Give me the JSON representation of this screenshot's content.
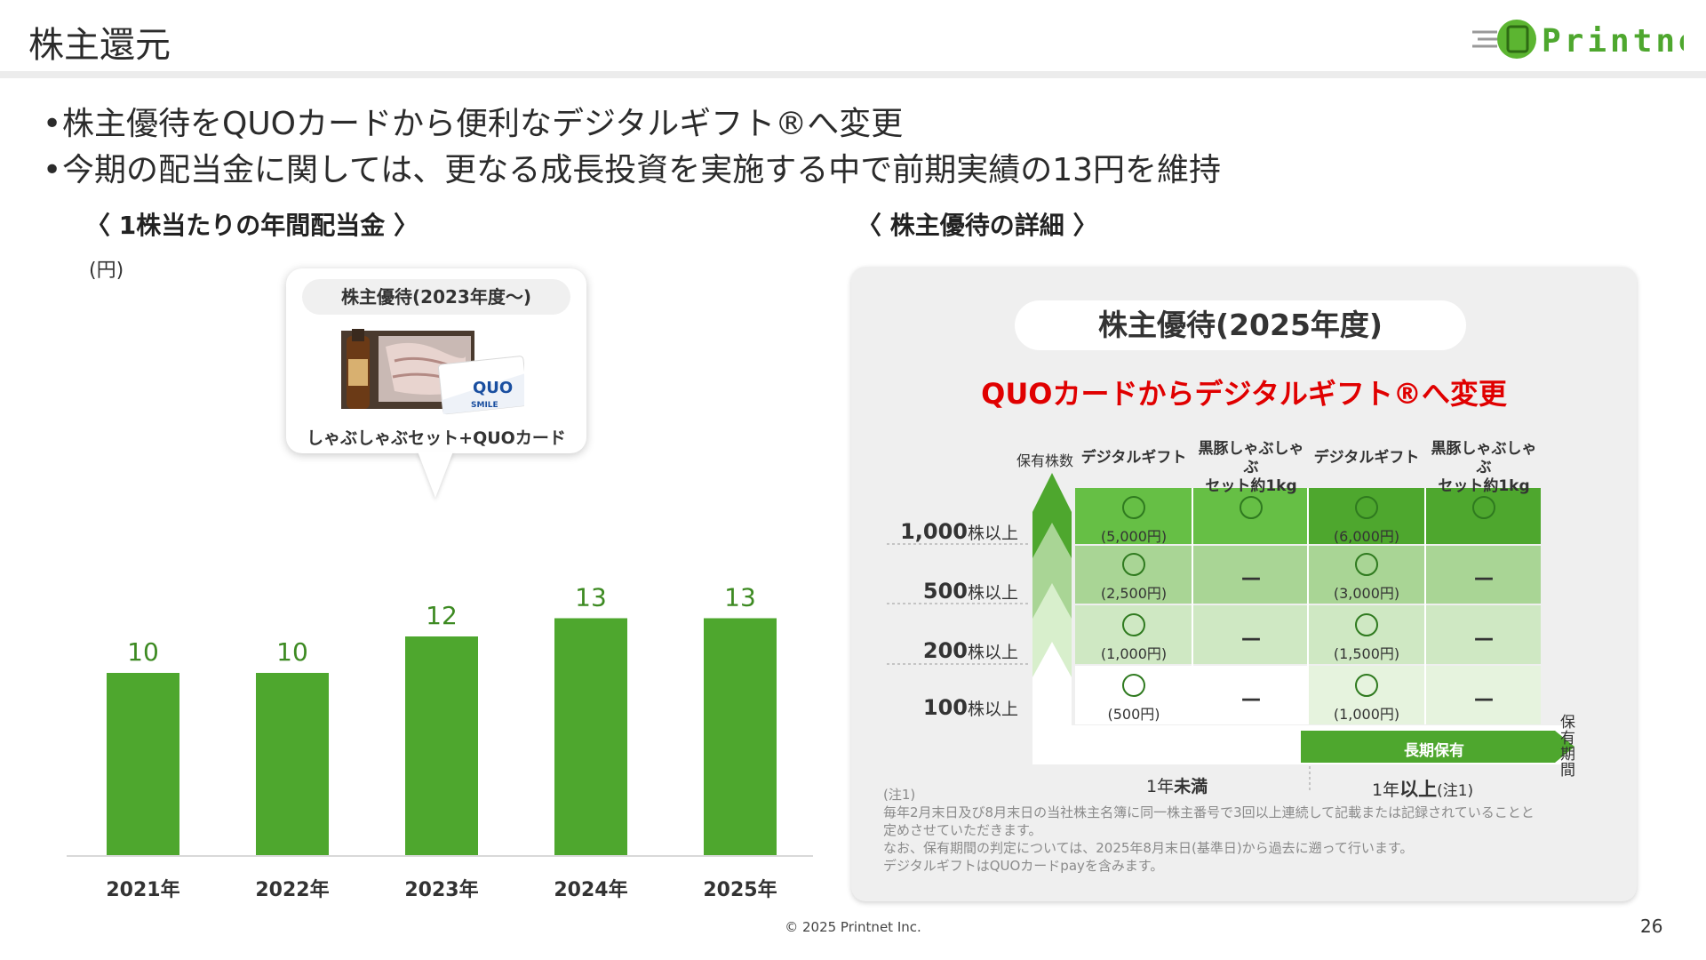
{
  "page_title": "株主還元",
  "logo_text": "Printnet",
  "bullets": [
    "株主優待をQUOカードから便利なデジタルギフト®へ変更",
    "今期の配当金に関しては、更なる成長投資を実施する中で前期実績の13円を維持"
  ],
  "left_section": {
    "title": "〈 1株当たりの年間配当金 〉",
    "unit": "(円)"
  },
  "callout": {
    "pill": "株主優待(2023年度～)",
    "caption": "しゃぶしゃぶセット+QUOカード",
    "card_brand": "QUO",
    "card_sub": "SMILE"
  },
  "chart_data": {
    "type": "bar",
    "categories": [
      "2021年",
      "2022年",
      "2023年",
      "2024年",
      "2025年"
    ],
    "values": [
      10,
      10,
      12,
      13,
      13
    ],
    "ylabel": "(円)",
    "color": "#4ea72e"
  },
  "right_section": {
    "title": "〈 株主優待の詳細 〉",
    "pill": "株主優待(2025年度)",
    "headline": "QUOカードからデジタルギフト®へ変更",
    "corner_label": "保有株数",
    "col_heads": [
      "デジタルギフト",
      "黒豚しゃぶしゃぶ\nセット約1kg",
      "デジタルギフト",
      "黒豚しゃぶしゃぶ\nセット約1kg"
    ],
    "rows": [
      {
        "num": "1,000",
        "suffix": "株以上",
        "cells": [
          "(5,000円)",
          "",
          "(6,000円)",
          ""
        ]
      },
      {
        "num": "500",
        "suffix": "株以上",
        "cells": [
          "(2,500円)",
          "－",
          "(3,000円)",
          "－"
        ]
      },
      {
        "num": "200",
        "suffix": "株以上",
        "cells": [
          "(1,000円)",
          "－",
          "(1,500円)",
          "－"
        ]
      },
      {
        "num": "100",
        "suffix": "株以上",
        "cells": [
          "(500円)",
          "－",
          "(1,000円)",
          "－"
        ]
      }
    ],
    "long_hold_label": "長期保有",
    "period_axis_label": "保有期間",
    "period_left": {
      "num": "1年",
      "strong": "未満"
    },
    "period_right": {
      "num": "1年",
      "strong": "以上",
      "note": "(注1)"
    },
    "notes": [
      "(注1)",
      "毎年2月末日及び8月末日の当社株主名簿に同一株主番号で3回以上連続して記載または記録されていることと",
      "定めさせていただきます。",
      "なお、保有期間の判定については、2025年8月末日(基準日)から過去に遡って行います。",
      "デジタルギフトはQUOカードpayを含みます。"
    ]
  },
  "footer": "© 2025 Printnet Inc.",
  "page_number": "26"
}
